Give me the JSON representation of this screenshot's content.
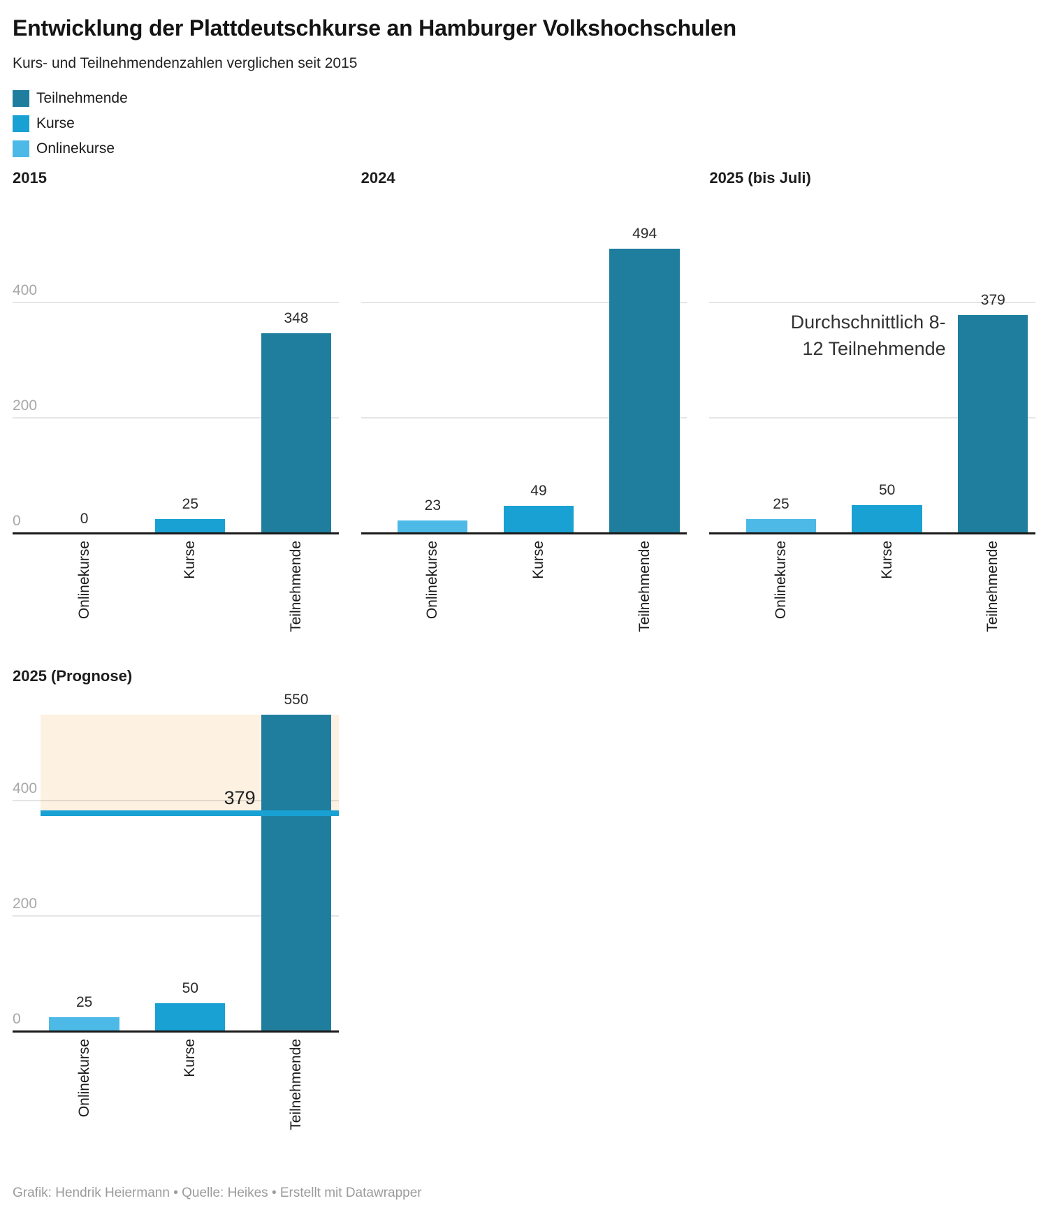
{
  "header": {
    "title": "Entwicklung der Plattdeutschkurse an Hamburger Volkshochschulen",
    "subtitle": "Kurs- und Teilnehmendenzahlen verglichen seit 2015"
  },
  "legend": {
    "items": [
      {
        "label": "Teilnehmende",
        "color": "#1f7e9e"
      },
      {
        "label": "Kurse",
        "color": "#18a1d2"
      },
      {
        "label": "Onlinekurse",
        "color": "#4cb9e6"
      }
    ]
  },
  "chart_data": {
    "type": "bar",
    "layout": "small_multiples",
    "categories": [
      "Onlinekurse",
      "Kurse",
      "Teilnehmende"
    ],
    "series_colors": [
      "#4cb9e6",
      "#18a1d2",
      "#1f7e9e"
    ],
    "y_axis": {
      "ticks": [
        0,
        200,
        400
      ],
      "max": 594,
      "grid": true
    },
    "panels": [
      {
        "title": "2015",
        "values": [
          0,
          25,
          348
        ],
        "show_y_ticks": true
      },
      {
        "title": "2024",
        "values": [
          23,
          49,
          494
        ],
        "show_y_ticks": false
      },
      {
        "title": "2025 (bis Juli)",
        "values": [
          25,
          50,
          379
        ],
        "show_y_ticks": false,
        "annotation": {
          "lines": [
            "Durchschnittlich 8-",
            "12 Teilnehmende"
          ]
        }
      },
      {
        "title": "2025 (Prognose)",
        "values": [
          25,
          50,
          550
        ],
        "show_y_ticks": true,
        "reference_line": {
          "value": 379,
          "label": "379",
          "color": "#18a1d2"
        },
        "highlight_range": {
          "from": 379,
          "to": 550,
          "color": "#fdf1e2"
        }
      }
    ]
  },
  "footer": {
    "credit": "Grafik: Hendrik Heiermann • Quelle: Heikes  • Erstellt mit Datawrapper"
  }
}
